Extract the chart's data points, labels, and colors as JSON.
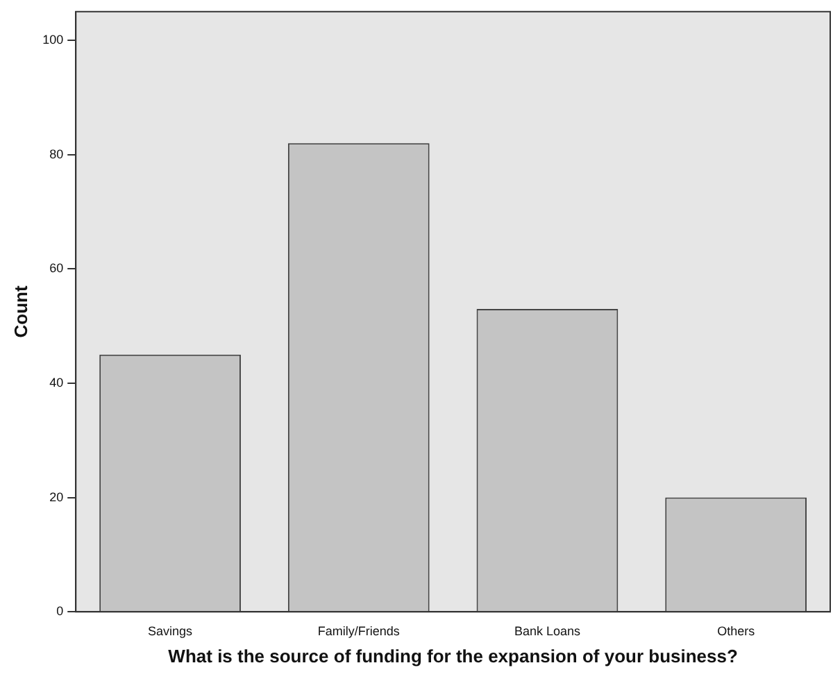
{
  "chart_data": {
    "type": "bar",
    "xlabel": "What is the source of funding for the expansion of your business?",
    "ylabel": "Count",
    "categories": [
      "Savings",
      "Family/Friends",
      "Bank Loans",
      "Others"
    ],
    "values": [
      45,
      82,
      53,
      20
    ],
    "color": "#c4c4c4",
    "ylim": [
      0,
      105
    ],
    "yticks": [
      0,
      20,
      40,
      60,
      80,
      100
    ],
    "grid": false,
    "legend": false
  }
}
